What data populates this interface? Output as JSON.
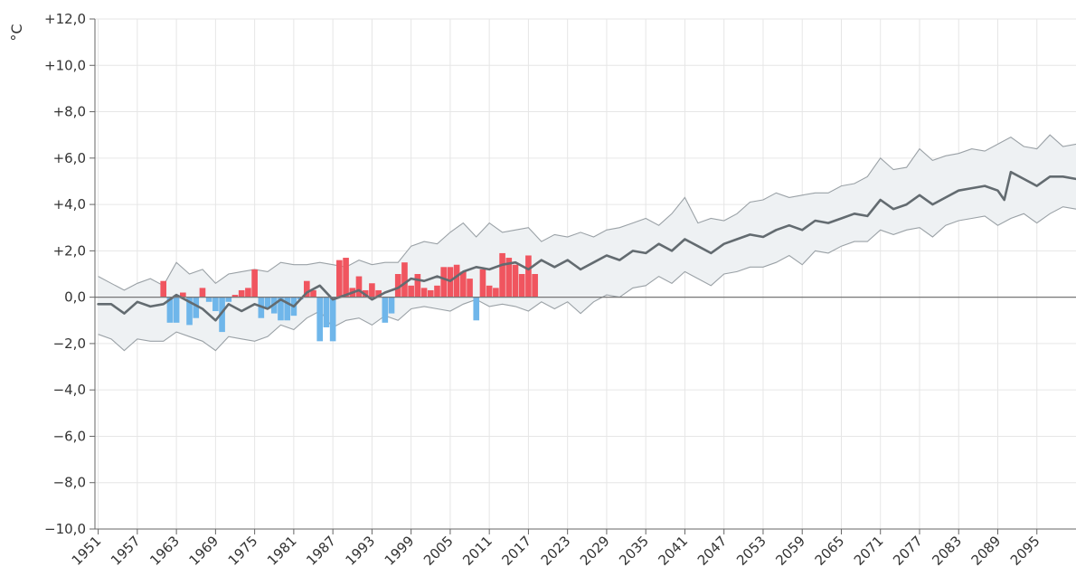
{
  "chart_data": {
    "type": "bar",
    "title": "",
    "xlabel": "",
    "ylabel": "°C",
    "xlim": [
      1950.5,
      2101
    ],
    "ylim": [
      -10,
      12
    ],
    "y_ticks": [
      -10,
      -8,
      -6,
      -4,
      -2,
      0,
      2,
      4,
      6,
      8,
      10,
      12
    ],
    "y_tick_labels": [
      "−10,0",
      "−8,0",
      "−6,0",
      "−4,0",
      "−2,0",
      "0,0",
      "+2,0",
      "+4,0",
      "+6,0",
      "+8,0",
      "+10,0",
      "+12,0"
    ],
    "x_ticks": [
      1951,
      1957,
      1963,
      1969,
      1975,
      1981,
      1987,
      1993,
      1999,
      2005,
      2011,
      2017,
      2023,
      2029,
      2035,
      2041,
      2047,
      2053,
      2059,
      2065,
      2071,
      2077,
      2083,
      2089,
      2095
    ],
    "grid": true,
    "legend": "none",
    "colors": {
      "positive_bar": "#f0555f",
      "negative_bar": "#6fb6ea",
      "mean_line": "#636b70",
      "band_fill": "#eef1f3",
      "band_edge": "#9aa1a6"
    },
    "observed_anomaly": {
      "x": [
        1961,
        1962,
        1963,
        1964,
        1965,
        1966,
        1967,
        1968,
        1969,
        1970,
        1971,
        1972,
        1973,
        1974,
        1975,
        1976,
        1977,
        1978,
        1979,
        1980,
        1981,
        1982,
        1983,
        1984,
        1985,
        1986,
        1987,
        1988,
        1989,
        1990,
        1991,
        1992,
        1993,
        1994,
        1995,
        1996,
        1997,
        1998,
        1999,
        2000,
        2001,
        2002,
        2003,
        2004,
        2005,
        2006,
        2007,
        2008,
        2009,
        2010,
        2011,
        2012,
        2013,
        2014,
        2015,
        2016,
        2017,
        2018
      ],
      "values": [
        0.7,
        -1.1,
        -1.1,
        0.2,
        -1.2,
        -0.9,
        0.4,
        -0.2,
        -0.6,
        -1.5,
        -0.2,
        0.1,
        0.3,
        0.4,
        1.2,
        -0.9,
        -0.5,
        -0.7,
        -1.0,
        -1.0,
        -0.8,
        -0.1,
        0.7,
        0.3,
        -1.9,
        -1.3,
        -1.9,
        1.6,
        1.7,
        0.4,
        0.9,
        0.3,
        0.6,
        0.3,
        -1.1,
        -0.7,
        1.0,
        1.5,
        0.5,
        1.0,
        0.4,
        0.3,
        0.5,
        1.3,
        1.3,
        1.4,
        1.1,
        0.8,
        -1.0,
        1.2,
        0.5,
        0.4,
        1.9,
        1.7,
        1.4,
        1.0,
        1.8,
        1.0
      ]
    },
    "projection_mean": {
      "x": [
        1951,
        1953,
        1955,
        1957,
        1959,
        1961,
        1963,
        1965,
        1967,
        1969,
        1971,
        1973,
        1975,
        1977,
        1979,
        1981,
        1983,
        1985,
        1987,
        1989,
        1991,
        1993,
        1995,
        1997,
        1999,
        2001,
        2003,
        2005,
        2007,
        2009,
        2011,
        2013,
        2015,
        2017,
        2019,
        2021,
        2023,
        2025,
        2027,
        2029,
        2031,
        2033,
        2035,
        2037,
        2039,
        2041,
        2043,
        2045,
        2047,
        2049,
        2051,
        2053,
        2055,
        2057,
        2059,
        2061,
        2063,
        2065,
        2067,
        2069,
        2071,
        2073,
        2075,
        2077,
        2079,
        2081,
        2083,
        2085,
        2087,
        2089,
        2090,
        2091,
        2093,
        2095,
        2097,
        2099,
        2101
      ],
      "values": [
        -0.3,
        -0.3,
        -0.7,
        -0.2,
        -0.4,
        -0.3,
        0.1,
        -0.2,
        -0.5,
        -1.0,
        -0.3,
        -0.6,
        -0.3,
        -0.5,
        -0.1,
        -0.4,
        0.2,
        0.5,
        -0.1,
        0.1,
        0.3,
        -0.1,
        0.2,
        0.4,
        0.8,
        0.7,
        0.9,
        0.7,
        1.1,
        1.3,
        1.2,
        1.4,
        1.5,
        1.2,
        1.6,
        1.3,
        1.6,
        1.2,
        1.5,
        1.8,
        1.6,
        2.0,
        1.9,
        2.3,
        2.0,
        2.5,
        2.2,
        1.9,
        2.3,
        2.5,
        2.7,
        2.6,
        2.9,
        3.1,
        2.9,
        3.3,
        3.2,
        3.4,
        3.6,
        3.5,
        4.2,
        3.8,
        4.0,
        4.4,
        4.0,
        4.3,
        4.6,
        4.7,
        4.8,
        4.6,
        4.2,
        5.4,
        5.1,
        4.8,
        5.2,
        5.2,
        5.1
      ]
    },
    "projection_band": {
      "x": [
        1951,
        1953,
        1955,
        1957,
        1959,
        1961,
        1963,
        1965,
        1967,
        1969,
        1971,
        1973,
        1975,
        1977,
        1979,
        1981,
        1983,
        1985,
        1987,
        1989,
        1991,
        1993,
        1995,
        1997,
        1999,
        2001,
        2003,
        2005,
        2007,
        2009,
        2011,
        2013,
        2015,
        2017,
        2019,
        2021,
        2023,
        2025,
        2027,
        2029,
        2031,
        2033,
        2035,
        2037,
        2039,
        2041,
        2043,
        2045,
        2047,
        2049,
        2051,
        2053,
        2055,
        2057,
        2059,
        2061,
        2063,
        2065,
        2067,
        2069,
        2071,
        2073,
        2075,
        2077,
        2079,
        2081,
        2083,
        2085,
        2087,
        2089,
        2091,
        2093,
        2095,
        2097,
        2099,
        2101
      ],
      "upper": [
        0.9,
        0.6,
        0.3,
        0.6,
        0.8,
        0.5,
        1.5,
        1.0,
        1.2,
        0.6,
        1.0,
        1.1,
        1.2,
        1.1,
        1.5,
        1.4,
        1.4,
        1.5,
        1.4,
        1.3,
        1.6,
        1.4,
        1.5,
        1.5,
        2.2,
        2.4,
        2.3,
        2.8,
        3.2,
        2.6,
        3.2,
        2.8,
        2.9,
        3.0,
        2.4,
        2.7,
        2.6,
        2.8,
        2.6,
        2.9,
        3.0,
        3.2,
        3.4,
        3.1,
        3.6,
        4.3,
        3.2,
        3.4,
        3.3,
        3.6,
        4.1,
        4.2,
        4.5,
        4.3,
        4.4,
        4.5,
        4.5,
        4.8,
        4.9,
        5.2,
        6.0,
        5.5,
        5.6,
        6.4,
        5.9,
        6.1,
        6.2,
        6.4,
        6.3,
        6.6,
        6.9,
        6.5,
        6.4,
        7.0,
        6.5,
        6.6
      ],
      "lower": [
        -1.6,
        -1.8,
        -2.3,
        -1.8,
        -1.9,
        -1.9,
        -1.5,
        -1.7,
        -1.9,
        -2.3,
        -1.7,
        -1.8,
        -1.9,
        -1.7,
        -1.2,
        -1.4,
        -0.9,
        -0.6,
        -1.3,
        -1.0,
        -0.9,
        -1.2,
        -0.8,
        -1.0,
        -0.5,
        -0.4,
        -0.5,
        -0.6,
        -0.3,
        -0.1,
        -0.4,
        -0.3,
        -0.4,
        -0.6,
        -0.2,
        -0.5,
        -0.2,
        -0.7,
        -0.2,
        0.1,
        0.0,
        0.4,
        0.5,
        0.9,
        0.6,
        1.1,
        0.8,
        0.5,
        1.0,
        1.1,
        1.3,
        1.3,
        1.5,
        1.8,
        1.4,
        2.0,
        1.9,
        2.2,
        2.4,
        2.4,
        2.9,
        2.7,
        2.9,
        3.0,
        2.6,
        3.1,
        3.3,
        3.4,
        3.5,
        3.1,
        3.4,
        3.6,
        3.2,
        3.6,
        3.9,
        3.8
      ]
    }
  }
}
